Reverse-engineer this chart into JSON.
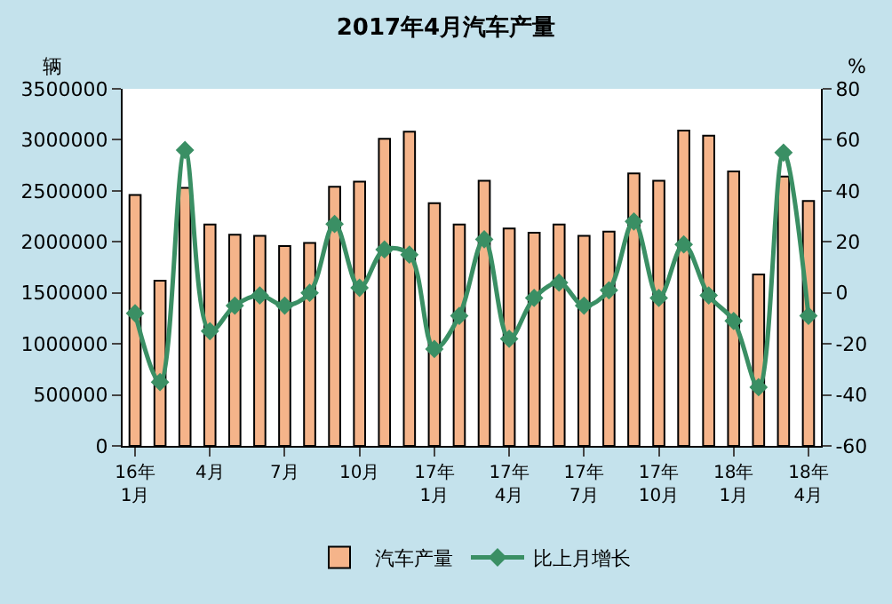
{
  "chart_data": {
    "type": "bar",
    "title": "2017年4月汽车产量",
    "ylabel": "辆",
    "y2label": "%",
    "categories": [
      "16年1月",
      null,
      null,
      "4月",
      null,
      null,
      "7月",
      null,
      null,
      "10月",
      null,
      null,
      "17年1月",
      null,
      null,
      "17年4月",
      null,
      null,
      "17年7月",
      null,
      null,
      "17年10月",
      null,
      null,
      "18年1月",
      null,
      null,
      "18年4月"
    ],
    "series": [
      {
        "name": "汽车产量",
        "color": "#f5b48a",
        "values": [
          2460000,
          1620000,
          2530000,
          2170000,
          2070000,
          2060000,
          1960000,
          1990000,
          2540000,
          2590000,
          3010000,
          3080000,
          2380000,
          2170000,
          2600000,
          2130000,
          2090000,
          2170000,
          2060000,
          2100000,
          2670000,
          2600000,
          3090000,
          3040000,
          2690000,
          1680000,
          2640000,
          2400000
        ]
      },
      {
        "name": "比上月增长",
        "type": "line",
        "axis": "y2",
        "color": "#3a8f64",
        "marker": "diamond",
        "values": [
          -8,
          -35,
          56,
          -15,
          -5,
          -1,
          -5,
          0,
          27,
          2,
          17,
          15,
          -22,
          -9,
          21,
          -18,
          -2,
          4,
          -5,
          1,
          28,
          -2,
          19,
          -1,
          -11,
          -37,
          55,
          -9
        ]
      }
    ],
    "ylim": [
      0,
      3500000
    ],
    "yticks": [
      0,
      500000,
      1000000,
      1500000,
      2000000,
      2500000,
      3000000,
      3500000
    ],
    "y2lim": [
      -60,
      80
    ],
    "y2ticks": [
      -60,
      -40,
      -20,
      0,
      20,
      40,
      60,
      80
    ],
    "legend": "bottom"
  }
}
